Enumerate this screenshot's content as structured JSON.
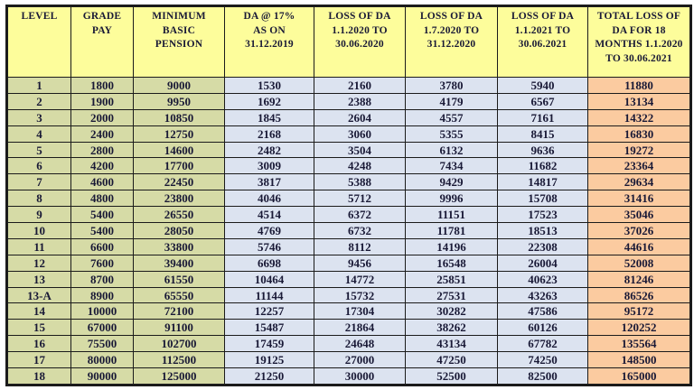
{
  "chart_data": {
    "type": "table",
    "columns": [
      "LEVEL",
      "GRADE\nPAY",
      "MINIMUM\nBASIC\nPENSION",
      "DA @ 17%\nAS ON\n31.12.2019",
      "LOSS OF DA\n1.1.2020 TO\n30.06.2020",
      "LOSS OF DA\n1.7.2020 TO\n31.12.2020",
      "LOSS OF DA\n1.1.2021 TO\n30.06.2021",
      "TOTAL LOSS OF\nDA FOR 18\nMONTHS 1.1.2020\nTO 30.06.2021"
    ],
    "rows": [
      [
        "1",
        "1800",
        "9000",
        "1530",
        "2160",
        "3780",
        "5940",
        "11880"
      ],
      [
        "2",
        "1900",
        "9950",
        "1692",
        "2388",
        "4179",
        "6567",
        "13134"
      ],
      [
        "3",
        "2000",
        "10850",
        "1845",
        "2604",
        "4557",
        "7161",
        "14322"
      ],
      [
        "4",
        "2400",
        "12750",
        "2168",
        "3060",
        "5355",
        "8415",
        "16830"
      ],
      [
        "5",
        "2800",
        "14600",
        "2482",
        "3504",
        "6132",
        "9636",
        "19272"
      ],
      [
        "6",
        "4200",
        "17700",
        "3009",
        "4248",
        "7434",
        "11682",
        "23364"
      ],
      [
        "7",
        "4600",
        "22450",
        "3817",
        "5388",
        "9429",
        "14817",
        "29634"
      ],
      [
        "8",
        "4800",
        "23800",
        "4046",
        "5712",
        "9996",
        "15708",
        "31416"
      ],
      [
        "9",
        "5400",
        "26550",
        "4514",
        "6372",
        "11151",
        "17523",
        "35046"
      ],
      [
        "10",
        "5400",
        "28050",
        "4769",
        "6732",
        "11781",
        "18513",
        "37026"
      ],
      [
        "11",
        "6600",
        "33800",
        "5746",
        "8112",
        "14196",
        "22308",
        "44616"
      ],
      [
        "12",
        "7600",
        "39400",
        "6698",
        "9456",
        "16548",
        "26004",
        "52008"
      ],
      [
        "13",
        "8700",
        "61550",
        "10464",
        "14772",
        "25851",
        "40623",
        "81246"
      ],
      [
        "13-A",
        "8900",
        "65550",
        "11144",
        "15732",
        "27531",
        "43263",
        "86526"
      ],
      [
        "14",
        "10000",
        "72100",
        "12257",
        "17304",
        "30282",
        "47586",
        "95172"
      ],
      [
        "15",
        "67000",
        "91100",
        "15487",
        "21864",
        "38262",
        "60126",
        "120252"
      ],
      [
        "16",
        "75500",
        "102700",
        "17459",
        "24648",
        "43134",
        "67782",
        "135564"
      ],
      [
        "17",
        "80000",
        "112500",
        "19125",
        "27000",
        "47250",
        "74250",
        "148500"
      ],
      [
        "18",
        "90000",
        "125000",
        "21250",
        "30000",
        "52500",
        "82500",
        "165000"
      ]
    ]
  },
  "colors": {
    "page_bg": "#ffffff",
    "header_bg": "#fdfd9b",
    "green_col_bg": "#d6dba6",
    "blue_col_bg": "#dce3f0",
    "total_col_bg": "#fbcba0",
    "border": "#1b1b1b",
    "text": "#191936"
  }
}
